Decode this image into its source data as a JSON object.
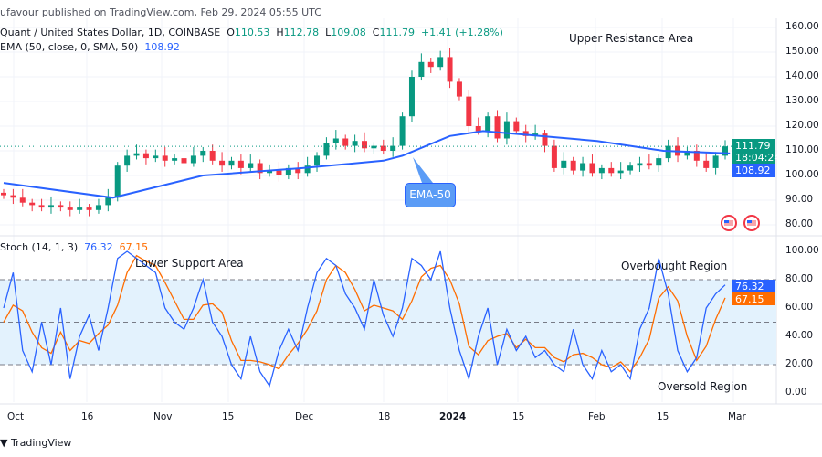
{
  "header": {
    "published": "ufavour published on TradingView.com, Feb 29, 2024 05:55 UTC",
    "symbol": "Quant / United States Dollar, 1D, COINBASE",
    "open_label": "O",
    "open": "110.53",
    "high_label": "H",
    "high": "112.78",
    "low_label": "L",
    "low": "109.08",
    "close_label": "C",
    "close": "111.79",
    "change": "+1.41 (+1.28%)",
    "ema_label": "EMA (50, close, 0, SMA, 50)",
    "ema_value": "108.92",
    "stoch_label": "Stoch (14, 1, 3)",
    "stoch_k": "76.32",
    "stoch_d": "67.15"
  },
  "badges": {
    "price": "111.79",
    "countdown": "18:04:24",
    "ema": "108.92",
    "k": "76.32",
    "d": "67.15"
  },
  "annotations": {
    "upper": "Upper Resistance Area",
    "lower": "Lower Support Area",
    "overbought": "Overbought Region",
    "oversold": "Oversold Region",
    "ema_callout": "EMA-50"
  },
  "footer": {
    "brand": "TradingView"
  },
  "colors": {
    "up": "#089981",
    "down": "#f23645",
    "ema": "#2962ff",
    "k": "#2962ff",
    "d": "#ff6d00",
    "band": "#e3f2fd"
  },
  "chart_data": [
    {
      "type": "candlestick",
      "title": "Quant / United States Dollar, 1D, COINBASE",
      "x_start": "2023-09-29",
      "x_end": "2024-02-29",
      "x_step_days": 2,
      "x_ticks": [
        "Oct",
        "16",
        "Nov",
        "15",
        "Dec",
        "18",
        "2024",
        "15",
        "Feb",
        "15",
        "Mar"
      ],
      "y_ticks": [
        "160.00",
        "150.00",
        "140.00",
        "130.00",
        "120.00",
        "110.00",
        "100.00",
        "90.00",
        "80.00"
      ],
      "ylim": [
        80,
        160
      ],
      "close": [
        92,
        91,
        89,
        88,
        87,
        88,
        87,
        86,
        87,
        86,
        88,
        91,
        104,
        108,
        109,
        107,
        108,
        106,
        107,
        105,
        108,
        110,
        106,
        104,
        106,
        103,
        105,
        101,
        102,
        100,
        103,
        101,
        104,
        108,
        113,
        115,
        112,
        114,
        111,
        112,
        110,
        112,
        124,
        140,
        146,
        144,
        148,
        138,
        132,
        120,
        118,
        124,
        115,
        122,
        118,
        116,
        117,
        112,
        103,
        106,
        102,
        105,
        101,
        103,
        101,
        102,
        104,
        105,
        104,
        107,
        112,
        108,
        110,
        106,
        103,
        108,
        111.79
      ],
      "ema50": {
        "name": "EMA (50, close, 0, SMA, 50)",
        "points": [
          [
            "2023-09-29",
            97
          ],
          [
            "2023-10-22",
            91
          ],
          [
            "2023-11-10",
            100
          ],
          [
            "2023-12-01",
            103
          ],
          [
            "2023-12-18",
            106
          ],
          [
            "2023-12-22",
            108
          ],
          [
            "2024-01-01",
            116
          ],
          [
            "2024-01-08",
            118
          ],
          [
            "2024-01-20",
            116
          ],
          [
            "2024-02-01",
            114
          ],
          [
            "2024-02-15",
            110
          ],
          [
            "2024-02-29",
            108.92
          ]
        ]
      }
    },
    {
      "type": "line",
      "title": "Stoch (14, 1, 3)",
      "ylim": [
        0,
        100
      ],
      "y_ticks": [
        "100.00",
        "80.00",
        "60.00",
        "40.00",
        "20.00",
        "0.00"
      ],
      "band": [
        20,
        80
      ],
      "series": [
        {
          "name": "%K",
          "values": [
            60,
            85,
            30,
            15,
            50,
            20,
            60,
            10,
            40,
            55,
            30,
            60,
            95,
            100,
            95,
            90,
            85,
            60,
            50,
            45,
            60,
            80,
            50,
            40,
            20,
            10,
            40,
            15,
            5,
            30,
            45,
            30,
            60,
            85,
            95,
            90,
            70,
            60,
            45,
            80,
            55,
            40,
            60,
            95,
            90,
            80,
            100,
            60,
            30,
            10,
            40,
            60,
            20,
            45,
            30,
            40,
            25,
            30,
            20,
            15,
            45,
            20,
            10,
            30,
            15,
            20,
            10,
            45,
            60,
            95,
            70,
            30,
            15,
            25,
            60,
            70,
            76.32
          ]
        },
        {
          "name": "%D",
          "values": [
            50,
            62,
            58,
            43,
            32,
            28,
            43,
            30,
            37,
            35,
            42,
            48,
            62,
            85,
            97,
            93,
            90,
            78,
            65,
            52,
            52,
            62,
            63,
            57,
            37,
            23,
            23,
            22,
            20,
            17,
            27,
            35,
            45,
            58,
            80,
            90,
            85,
            73,
            58,
            62,
            60,
            58,
            52,
            65,
            82,
            88,
            90,
            80,
            63,
            33,
            27,
            37,
            40,
            42,
            32,
            38,
            32,
            32,
            25,
            22,
            27,
            28,
            25,
            20,
            18,
            22,
            15,
            25,
            38,
            67,
            75,
            65,
            40,
            23,
            33,
            52,
            67.15
          ]
        }
      ]
    }
  ]
}
